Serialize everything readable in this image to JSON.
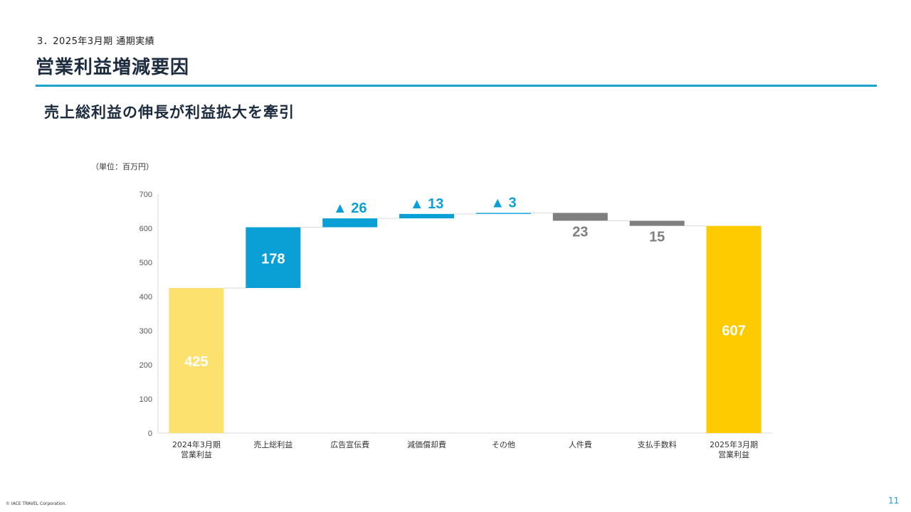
{
  "header": {
    "section": "3．2025年3月期 通期実績",
    "title": "営業利益増減要因",
    "subtitle": "売上総利益の伸長が利益拡大を牽引"
  },
  "unit_label": "（単位：百万円）",
  "footer": {
    "copyright": "© IACE TRAVEL Corporation.",
    "page": "11"
  },
  "colors": {
    "accent": "#1aa3cf",
    "start_bar": "#fde16e",
    "end_bar": "#fdcb00",
    "increase": "#0aa0d6",
    "decrease": "#7f7f7f"
  },
  "chart_data": {
    "type": "bar",
    "subtype": "waterfall",
    "ylim": [
      0,
      700
    ],
    "yticks": [
      0,
      100,
      200,
      300,
      400,
      500,
      600,
      700
    ],
    "grid": false,
    "categories": [
      "2024年3月期\n営業利益",
      "売上総利益",
      "広告宣伝費",
      "減価償却費",
      "その他",
      "人件費",
      "支払手数料",
      "2025年3月期\n営業利益"
    ],
    "steps": [
      {
        "kind": "total",
        "value": 425,
        "label": "425"
      },
      {
        "kind": "increase",
        "value": 178,
        "label": "178"
      },
      {
        "kind": "increase",
        "value": 26,
        "label": "▲ 26"
      },
      {
        "kind": "increase",
        "value": 13,
        "label": "▲ 13"
      },
      {
        "kind": "increase",
        "value": 3,
        "label": "▲ 3"
      },
      {
        "kind": "decrease",
        "value": 23,
        "label": "23"
      },
      {
        "kind": "decrease",
        "value": 15,
        "label": "15"
      },
      {
        "kind": "total",
        "value": 607,
        "label": "607"
      }
    ]
  }
}
